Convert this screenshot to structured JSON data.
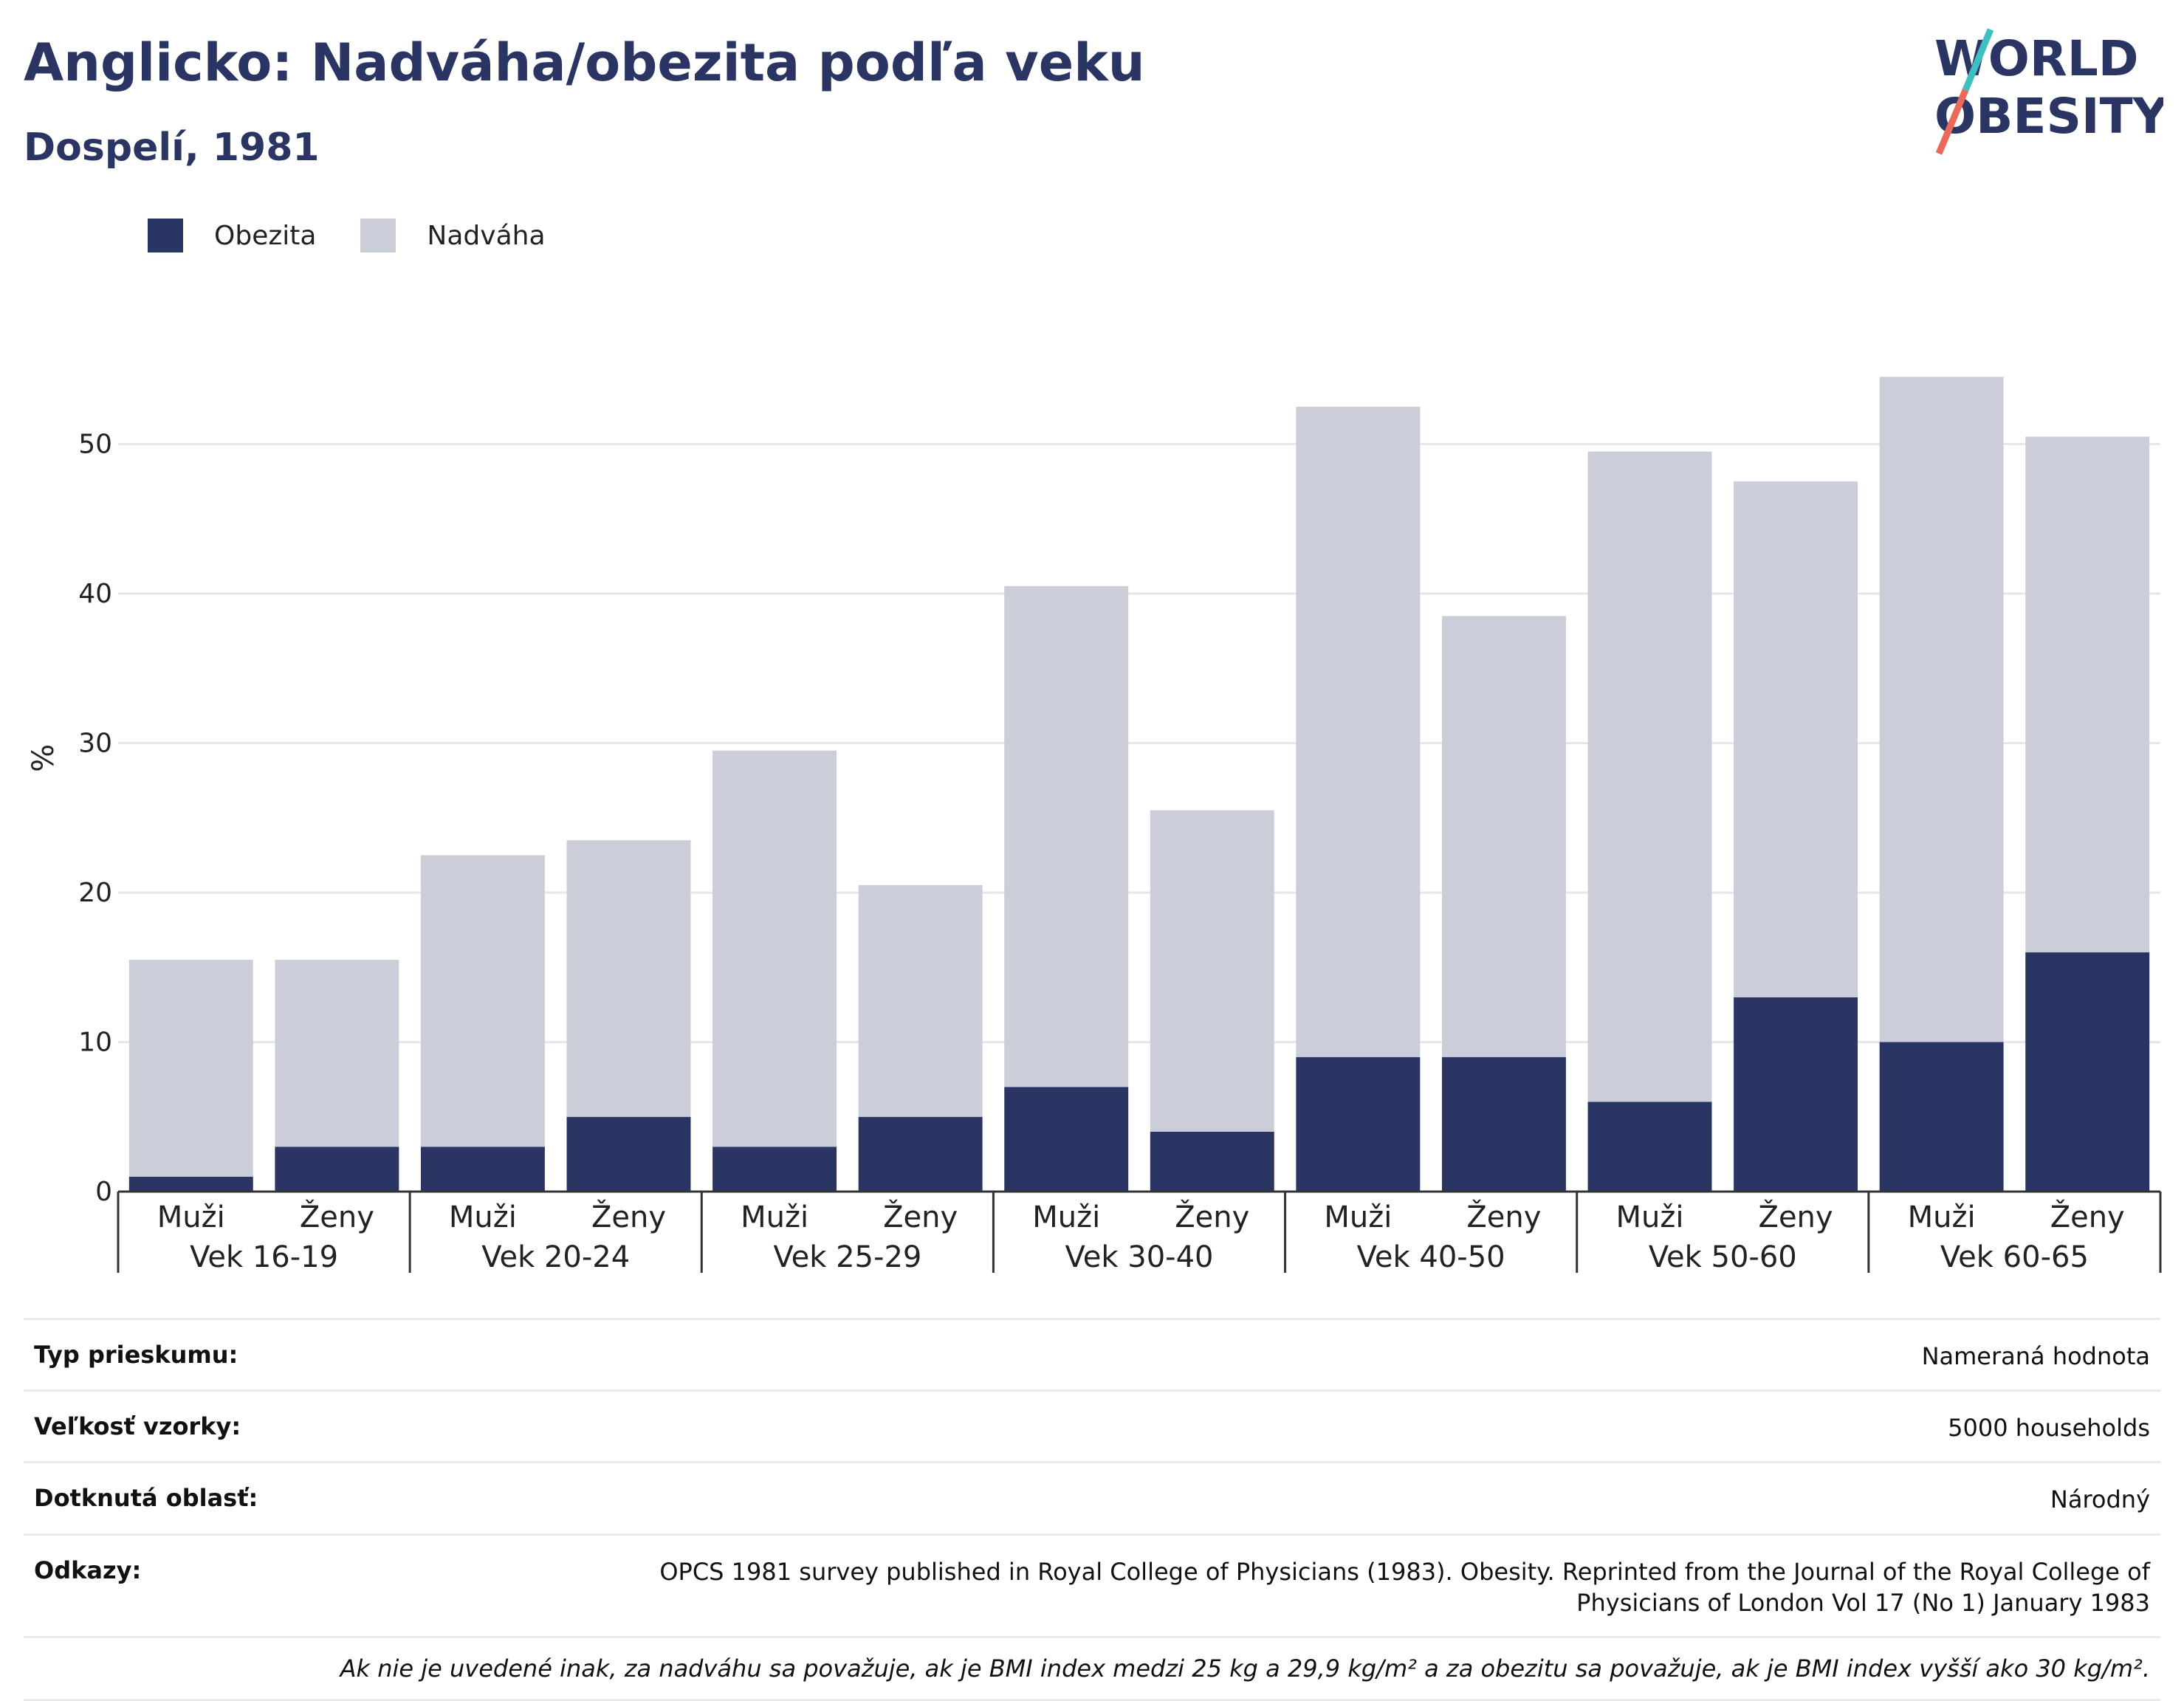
{
  "header": {
    "title": "Anglicko: Nadváha/obezita podľa veku",
    "subtitle": "Dospelí, 1981"
  },
  "logo": {
    "line1": "WORLD",
    "line2": "OBESITY",
    "accent_teal": "#3fbfbf",
    "accent_coral": "#e96a5a"
  },
  "legend": [
    {
      "label": "Obezita",
      "color": "#2a3563"
    },
    {
      "label": "Nadváha",
      "color": "#cbcdd8"
    }
  ],
  "chart_data": {
    "type": "bar",
    "stacked": true,
    "ylabel": "%",
    "ylim": [
      0,
      56
    ],
    "yticks": [
      0,
      10,
      20,
      30,
      40,
      50
    ],
    "grid": true,
    "legend_position": "top-left",
    "groups": [
      "Vek 16-19",
      "Vek 20-24",
      "Vek 25-29",
      "Vek 30-40",
      "Vek 40-50",
      "Vek 50-60",
      "Vek 60-65"
    ],
    "subcategories": [
      "Muži",
      "Ženy"
    ],
    "series": [
      {
        "name": "Obezita",
        "color": "#2a3563",
        "values": [
          1,
          3,
          3,
          5,
          3,
          5,
          7,
          4,
          9,
          9,
          6,
          13,
          10,
          16
        ]
      },
      {
        "name": "Nadváha",
        "color": "#cbcdd8",
        "values": [
          14.5,
          12.5,
          19.5,
          18.5,
          26.5,
          15.5,
          33.5,
          21.5,
          43.5,
          29.5,
          43.5,
          34.5,
          44.5,
          34.5
        ]
      }
    ]
  },
  "info": {
    "rows": [
      {
        "key": "Typ prieskumu:",
        "value": "Nameraná hodnota"
      },
      {
        "key": "Veľkosť vzorky:",
        "value": "5000 households"
      },
      {
        "key": "Dotknutá oblasť:",
        "value": "Národný"
      },
      {
        "key": "Odkazy:",
        "value": "OPCS 1981 survey published in Royal College of Physicians (1983). Obesity. Reprinted from the Journal of the Royal College of Physicians of London Vol 17 (No 1) January 1983"
      }
    ],
    "note": "Ak nie je uvedené inak, za nadváhu sa považuje, ak je BMI index medzi 25 kg a 29,9 kg/m² a za obezitu sa považuje, ak je BMI index vyšší ako 30 kg/m²."
  }
}
